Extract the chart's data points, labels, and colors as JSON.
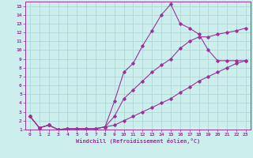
{
  "xlabel": "Windchill (Refroidissement éolien,°C)",
  "xlim": [
    -0.5,
    23.5
  ],
  "ylim": [
    1,
    15.5
  ],
  "xticks": [
    0,
    1,
    2,
    3,
    4,
    5,
    6,
    7,
    8,
    9,
    10,
    11,
    12,
    13,
    14,
    15,
    16,
    17,
    18,
    19,
    20,
    21,
    22,
    23
  ],
  "yticks": [
    1,
    2,
    3,
    4,
    5,
    6,
    7,
    8,
    9,
    10,
    11,
    12,
    13,
    14,
    15
  ],
  "bg_color": "#cceeed",
  "grid_color": "#aad4d2",
  "line_color": "#993399",
  "series": [
    {
      "x": [
        0,
        1,
        2,
        3,
        4,
        5,
        6,
        7,
        8,
        9,
        10,
        11,
        12,
        13,
        14,
        15,
        16,
        17,
        18,
        19,
        20,
        21,
        22,
        23
      ],
      "y": [
        2.5,
        1.2,
        1.5,
        1.0,
        1.1,
        1.1,
        1.1,
        1.1,
        1.3,
        4.2,
        7.5,
        8.5,
        10.5,
        12.2,
        14.0,
        15.2,
        13.0,
        12.5,
        11.8,
        10.0,
        8.8,
        8.8,
        8.8,
        8.8
      ]
    },
    {
      "x": [
        0,
        1,
        2,
        3,
        4,
        5,
        6,
        7,
        8,
        9,
        10,
        11,
        12,
        13,
        14,
        15,
        16,
        17,
        18,
        19,
        20,
        21,
        22,
        23
      ],
      "y": [
        2.5,
        1.2,
        1.5,
        1.0,
        1.1,
        1.1,
        1.1,
        1.1,
        1.3,
        2.5,
        4.5,
        5.5,
        6.5,
        7.5,
        8.3,
        9.0,
        10.2,
        11.0,
        11.5,
        11.5,
        11.8,
        12.0,
        12.2,
        12.5
      ]
    },
    {
      "x": [
        0,
        1,
        2,
        3,
        4,
        5,
        6,
        7,
        8,
        9,
        10,
        11,
        12,
        13,
        14,
        15,
        16,
        17,
        18,
        19,
        20,
        21,
        22,
        23
      ],
      "y": [
        2.5,
        1.2,
        1.5,
        1.0,
        1.1,
        1.1,
        1.1,
        1.1,
        1.3,
        1.5,
        2.0,
        2.5,
        3.0,
        3.5,
        4.0,
        4.5,
        5.2,
        5.8,
        6.5,
        7.0,
        7.5,
        8.0,
        8.5,
        8.8
      ]
    }
  ]
}
